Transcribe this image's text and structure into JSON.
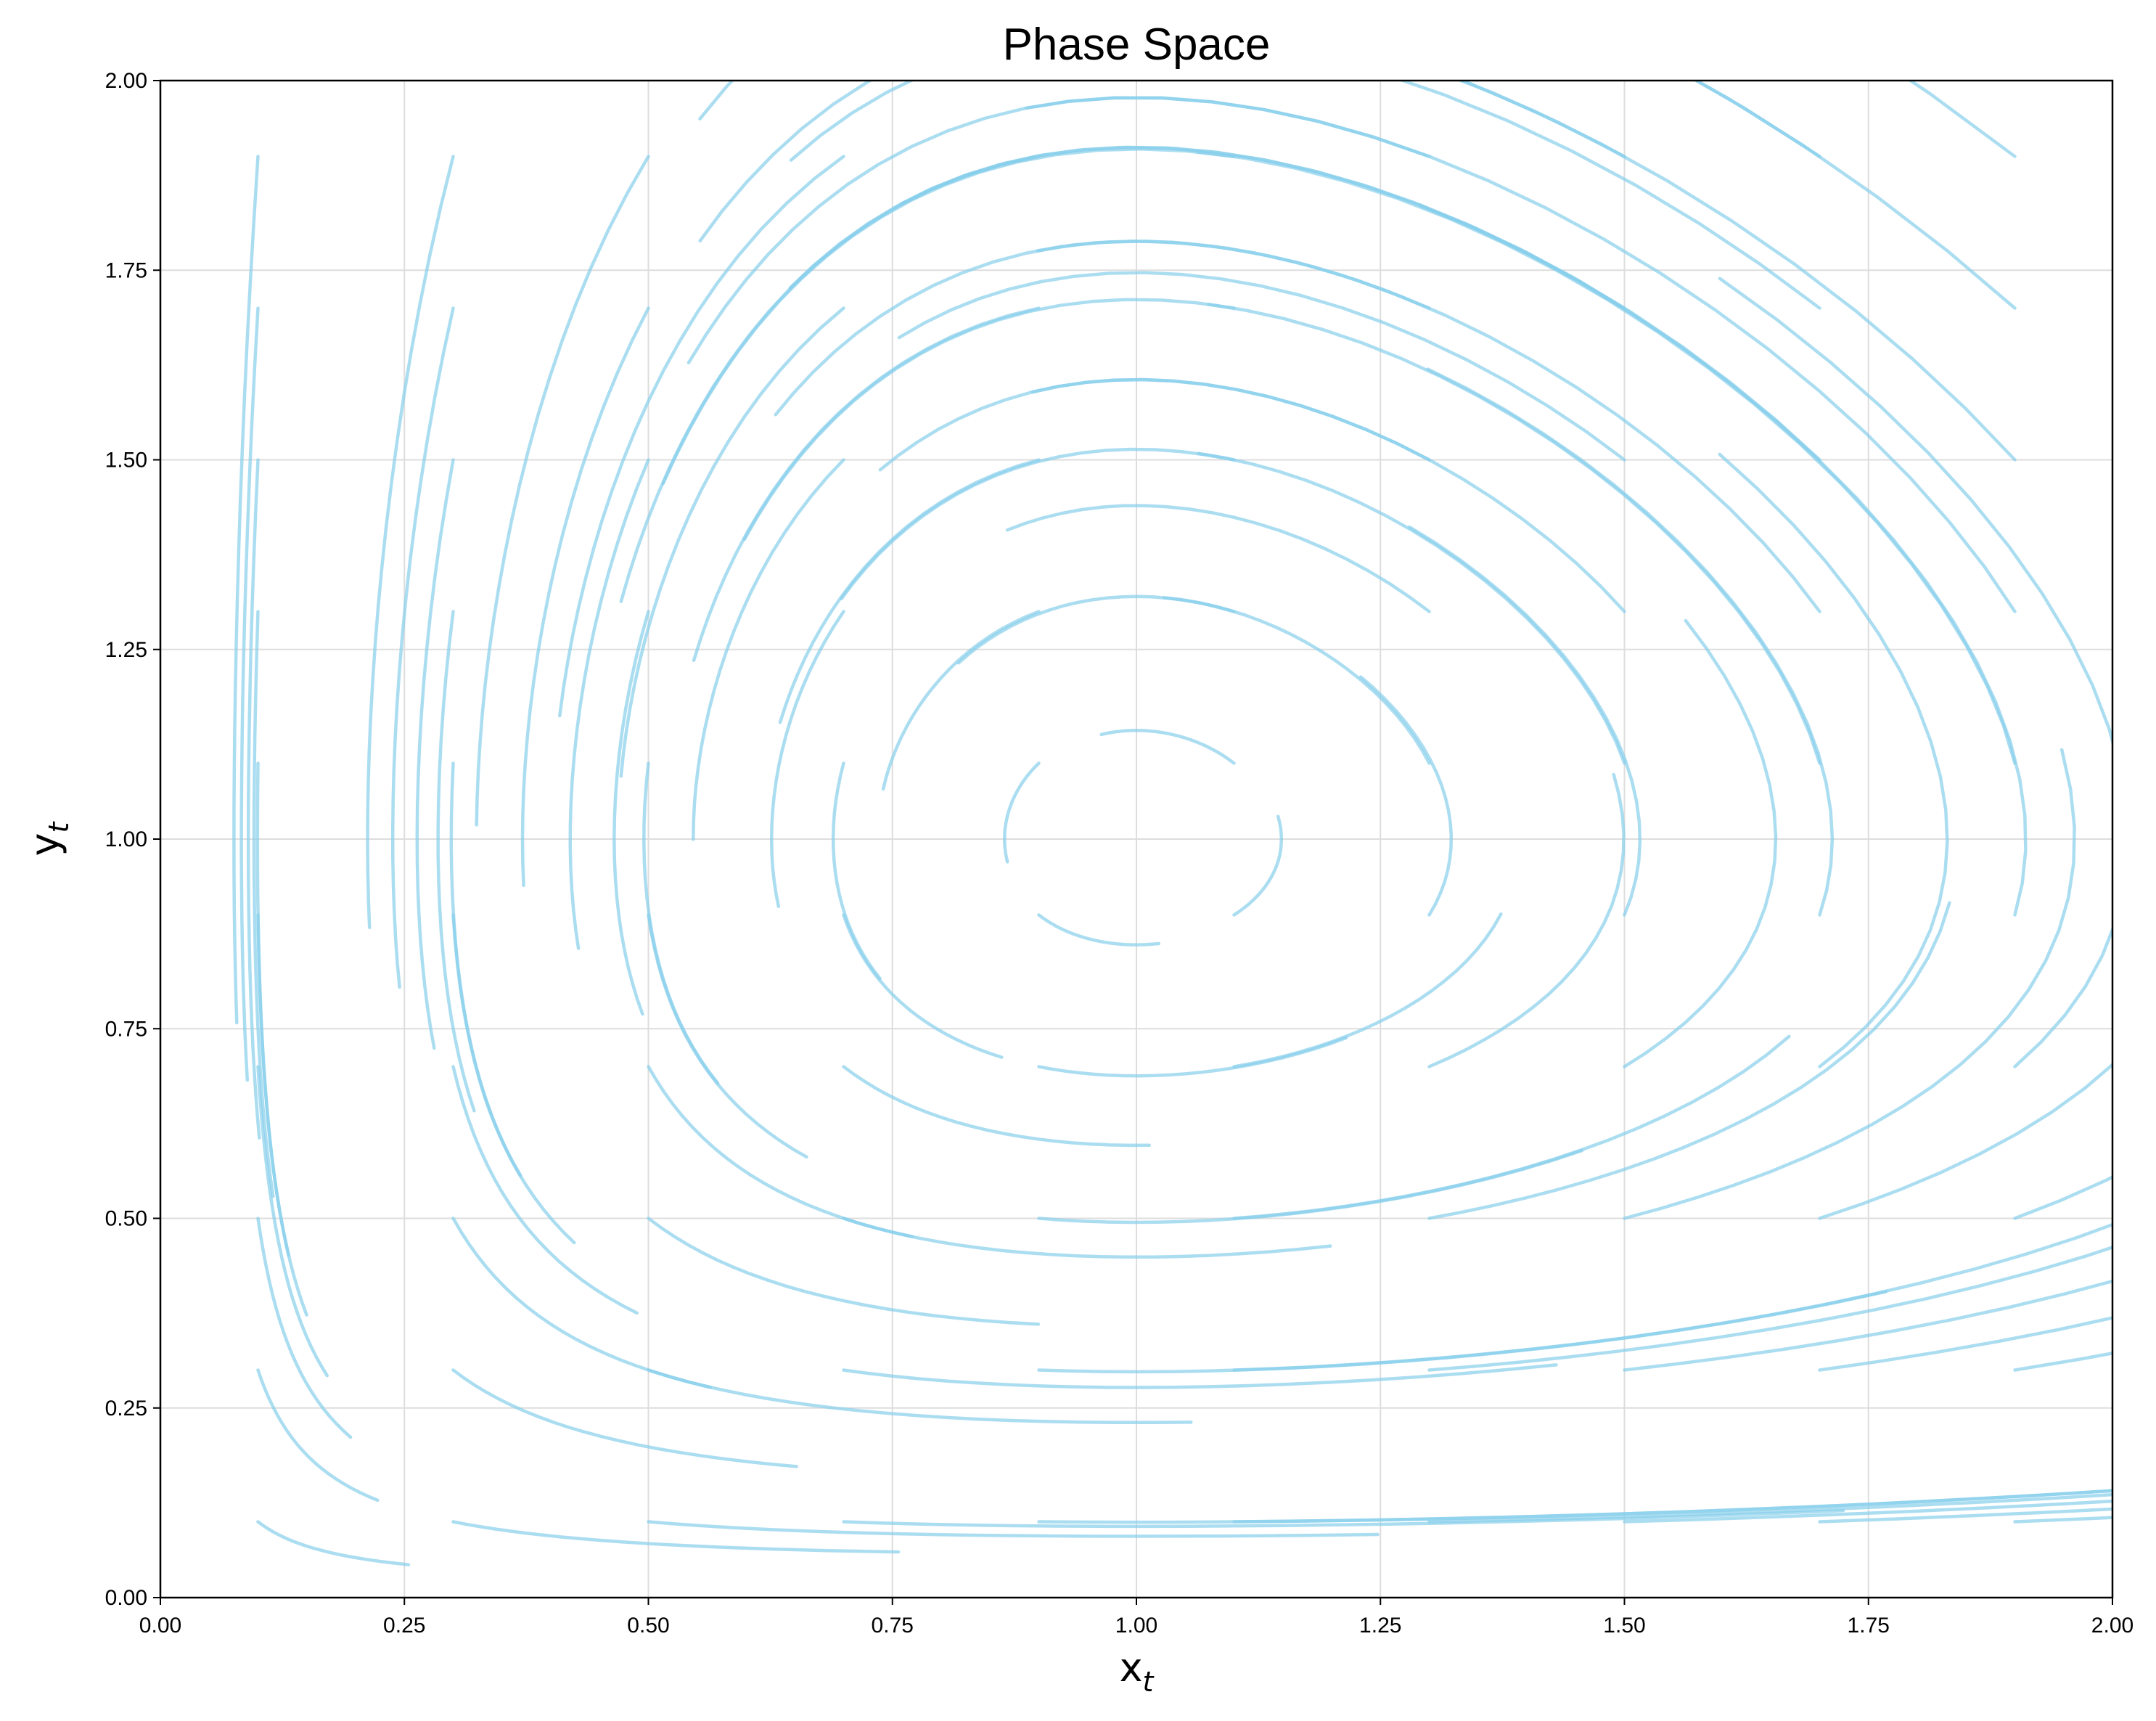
{
  "chart_data": {
    "type": "line",
    "title": "Phase Space",
    "xlabel_base": "x",
    "xlabel_sub": "t",
    "ylabel_base": "y",
    "ylabel_sub": "t",
    "xlim": [
      0,
      2
    ],
    "ylim": [
      0,
      2
    ],
    "xticks": [
      "0.00",
      "0.25",
      "0.50",
      "0.75",
      "1.00",
      "1.25",
      "1.50",
      "1.75",
      "2.00"
    ],
    "yticks": [
      "0.00",
      "0.25",
      "0.50",
      "0.75",
      "1.00",
      "1.25",
      "1.50",
      "1.75",
      "2.00"
    ],
    "grid": true,
    "line_color": "#87CEEB",
    "x0_values": [
      0.1,
      0.3,
      0.5,
      0.7,
      0.9,
      1.1,
      1.3,
      1.5,
      1.7,
      1.9
    ],
    "y0_values": [
      0.1,
      0.3,
      0.5,
      0.7,
      0.9,
      1.1,
      1.3,
      1.5,
      1.7,
      1.9
    ],
    "dt": 0.05,
    "steps": 20
  }
}
